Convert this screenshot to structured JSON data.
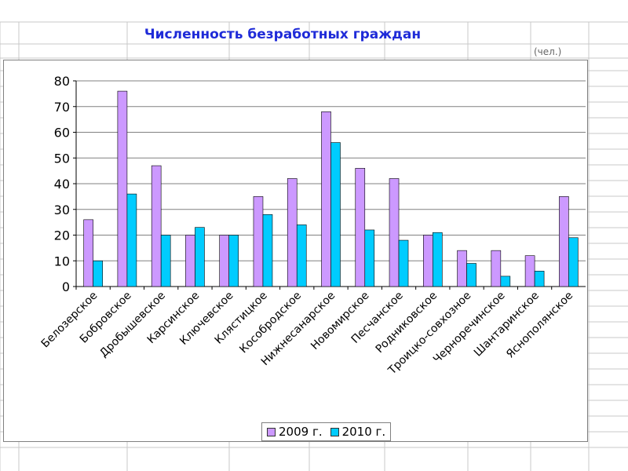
{
  "title": "Численность безработных граждан",
  "unit": "(чел.)",
  "colors": {
    "series_2009": "#cc99ff",
    "series_2010": "#00ccff",
    "title": "#1f2bd8"
  },
  "chart_data": {
    "type": "bar",
    "categories": [
      "Белозерское",
      "Бобровское",
      "Дробышевское",
      "Карсинское",
      "Ключевское",
      "Клястицкое",
      "Кособродское",
      "Нижнесанарское",
      "Новомирское",
      "Песчанское",
      "Родниковское",
      "Троицко-совхозное",
      "Черноречинское",
      "Шантаринское",
      "Яснополянское"
    ],
    "series": [
      {
        "name": "2009 г.",
        "values": [
          26,
          76,
          47,
          20,
          20,
          35,
          42,
          68,
          46,
          42,
          20,
          14,
          14,
          12,
          35
        ]
      },
      {
        "name": "2010 г.",
        "values": [
          10,
          36,
          20,
          23,
          20,
          28,
          24,
          56,
          22,
          18,
          21,
          9,
          4,
          6,
          19
        ]
      }
    ],
    "ylim": [
      0,
      80
    ],
    "yticks": [
      0,
      10,
      20,
      30,
      40,
      50,
      60,
      70,
      80
    ],
    "ytick_labels": [
      "0",
      "10",
      "20",
      "30",
      "40",
      "50",
      "60",
      "70",
      "80"
    ],
    "grid": true,
    "legend": "bottom"
  }
}
